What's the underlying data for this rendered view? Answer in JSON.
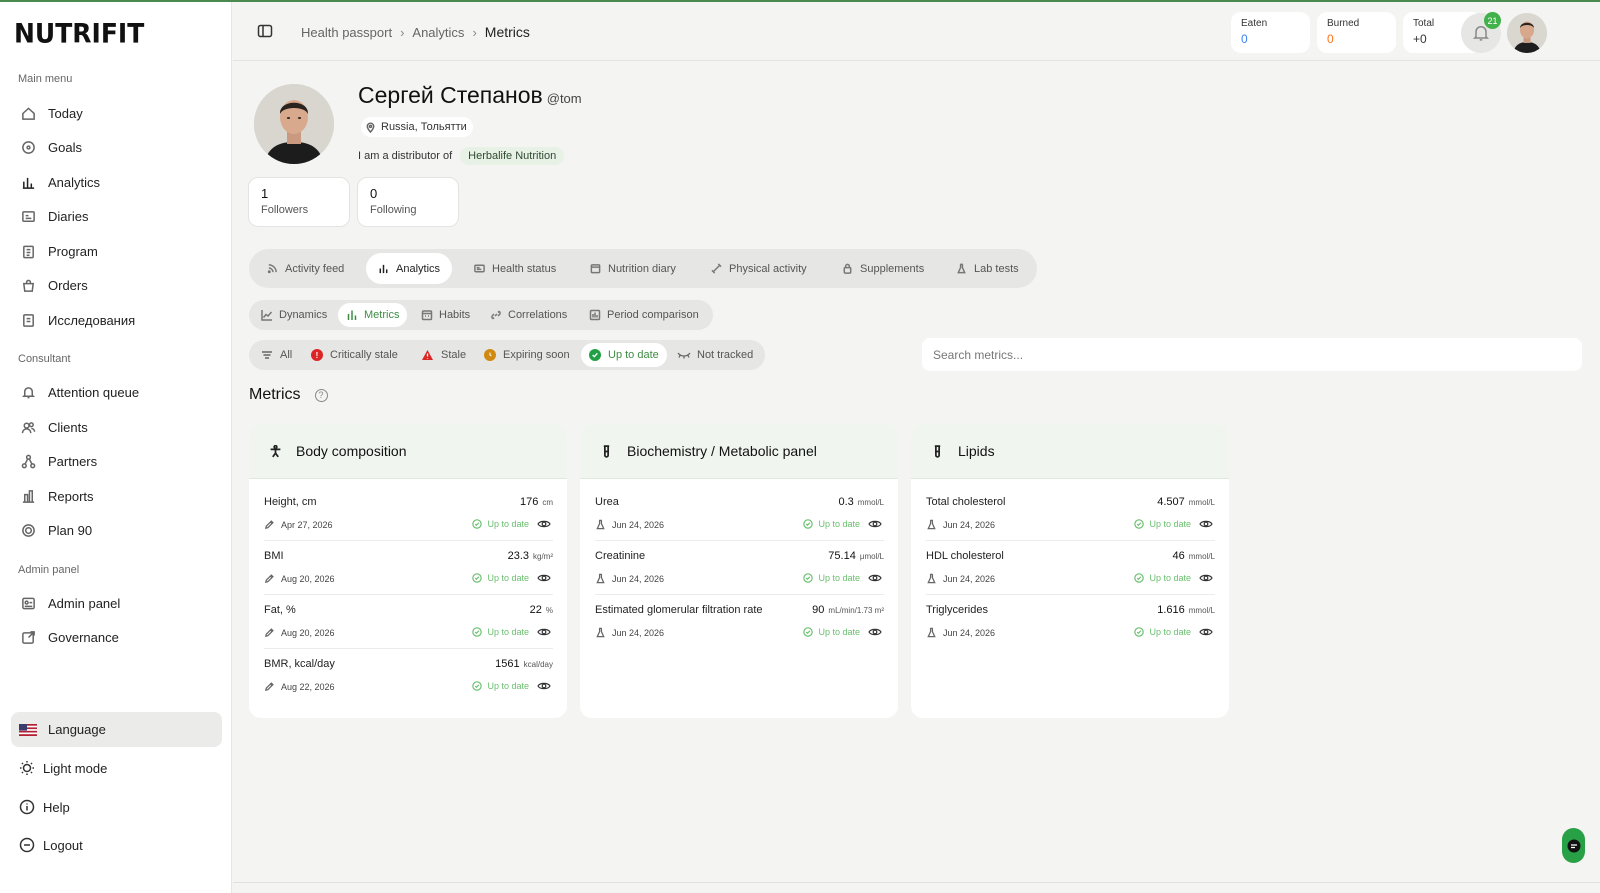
{
  "app": {
    "logo": "NUTRIFIT"
  },
  "sidebar": {
    "main_label": "Main menu",
    "main_items": [
      {
        "label": "Today",
        "icon": "home-icon"
      },
      {
        "label": "Goals",
        "icon": "target-icon"
      },
      {
        "label": "Analytics",
        "icon": "bar-chart-icon"
      },
      {
        "label": "Diaries",
        "icon": "diary-icon"
      },
      {
        "label": "Program",
        "icon": "clipboard-icon"
      },
      {
        "label": "Orders",
        "icon": "bag-icon"
      },
      {
        "label": "Исследования",
        "icon": "document-icon"
      }
    ],
    "consultant_label": "Consultant",
    "consultant_items": [
      {
        "label": "Attention queue",
        "icon": "bell-icon"
      },
      {
        "label": "Clients",
        "icon": "users-icon"
      },
      {
        "label": "Partners",
        "icon": "network-icon"
      },
      {
        "label": "Reports",
        "icon": "report-icon"
      },
      {
        "label": "Plan 90",
        "icon": "plan-icon"
      }
    ],
    "admin_label": "Admin panel",
    "admin_items": [
      {
        "label": "Admin panel",
        "icon": "admin-icon"
      },
      {
        "label": "Governance",
        "icon": "governance-icon"
      }
    ],
    "bottom": {
      "language": "Language",
      "light_mode": "Light mode",
      "help": "Help",
      "logout": "Logout"
    }
  },
  "topbar": {
    "breadcrumb": [
      "Health passport",
      "Analytics",
      "Metrics"
    ],
    "stats": [
      {
        "label": "Eaten",
        "value": "0",
        "color": "#3b82f6"
      },
      {
        "label": "Burned",
        "value": "0",
        "color": "#f97316"
      },
      {
        "label": "Total",
        "value": "+0",
        "color": "#333333"
      }
    ],
    "notifications": "21"
  },
  "profile": {
    "name": "Сергей Степанов",
    "handle": "@tom",
    "location": "Russia, Тольятти",
    "distributor_text": "I am a distributor of",
    "brand": "Herbalife Nutrition",
    "followers": {
      "count": "1",
      "label": "Followers"
    },
    "following": {
      "count": "0",
      "label": "Following"
    }
  },
  "tabs": [
    {
      "label": "Activity feed",
      "icon": "feed-icon"
    },
    {
      "label": "Analytics",
      "icon": "bar-chart-icon",
      "active": true
    },
    {
      "label": "Health status",
      "icon": "id-card-icon"
    },
    {
      "label": "Nutrition diary",
      "icon": "calendar-icon"
    },
    {
      "label": "Physical activity",
      "icon": "dumbbell-icon"
    },
    {
      "label": "Supplements",
      "icon": "lock-icon"
    },
    {
      "label": "Lab tests",
      "icon": "flask-icon"
    }
  ],
  "subtabs": [
    {
      "label": "Dynamics",
      "icon": "line-chart-icon"
    },
    {
      "label": "Metrics",
      "icon": "bar-chart-icon",
      "active": true
    },
    {
      "label": "Habits",
      "icon": "calendar-icon"
    },
    {
      "label": "Correlations",
      "icon": "link-icon"
    },
    {
      "label": "Period comparison",
      "icon": "compare-icon"
    }
  ],
  "filters": [
    {
      "label": "All",
      "icon": "filter-icon"
    },
    {
      "label": "Critically stale",
      "icon": "critical-icon",
      "color": "#dc2626"
    },
    {
      "label": "Stale",
      "icon": "warning-icon",
      "color": "#dc2626"
    },
    {
      "label": "Expiring soon",
      "icon": "clock-icon",
      "color": "#d97706"
    },
    {
      "label": "Up to date",
      "icon": "check-icon",
      "color": "#22a045",
      "active": true
    },
    {
      "label": "Not tracked",
      "icon": "eye-off-icon"
    }
  ],
  "search": {
    "placeholder": "Search metrics..."
  },
  "metrics_title": "Metrics",
  "cards": [
    {
      "title": "Body composition",
      "icon": "body-icon",
      "rows": [
        {
          "name": "Height, cm",
          "value": "176",
          "unit": "cm",
          "date": "Apr 27, 2026",
          "src": "pencil",
          "status": "Up to date"
        },
        {
          "name": "BMI",
          "value": "23.3",
          "unit": "kg/m²",
          "date": "Aug 20, 2026",
          "src": "pencil",
          "status": "Up to date"
        },
        {
          "name": "Fat, %",
          "value": "22",
          "unit": "%",
          "date": "Aug 20, 2026",
          "src": "pencil",
          "status": "Up to date"
        },
        {
          "name": "BMR, kcal/day",
          "value": "1561",
          "unit": "kcal/day",
          "date": "Aug 22, 2026",
          "src": "pencil",
          "status": "Up to date"
        }
      ]
    },
    {
      "title": "Biochemistry / Metabolic panel",
      "icon": "test-tube-icon",
      "rows": [
        {
          "name": "Urea",
          "value": "0.3",
          "unit": "mmol/L",
          "date": "Jun 24, 2026",
          "src": "flask",
          "status": "Up to date"
        },
        {
          "name": "Creatinine",
          "value": "75.14",
          "unit": "μmol/L",
          "date": "Jun 24, 2026",
          "src": "flask",
          "status": "Up to date"
        },
        {
          "name": "Estimated glomerular filtration rate",
          "value": "90",
          "unit": "mL/min/1.73 m²",
          "date": "Jun 24, 2026",
          "src": "flask",
          "status": "Up to date"
        }
      ]
    },
    {
      "title": "Lipids",
      "icon": "test-tube-icon",
      "rows": [
        {
          "name": "Total cholesterol",
          "value": "4.507",
          "unit": "mmol/L",
          "date": "Jun 24, 2026",
          "src": "flask",
          "status": "Up to date"
        },
        {
          "name": "HDL cholesterol",
          "value": "46",
          "unit": "mmol/L",
          "date": "Jun 24, 2026",
          "src": "flask",
          "status": "Up to date"
        },
        {
          "name": "Triglycerides",
          "value": "1.616",
          "unit": "mmol/L",
          "date": "Jun 24, 2026",
          "src": "flask",
          "status": "Up to date"
        }
      ]
    }
  ]
}
